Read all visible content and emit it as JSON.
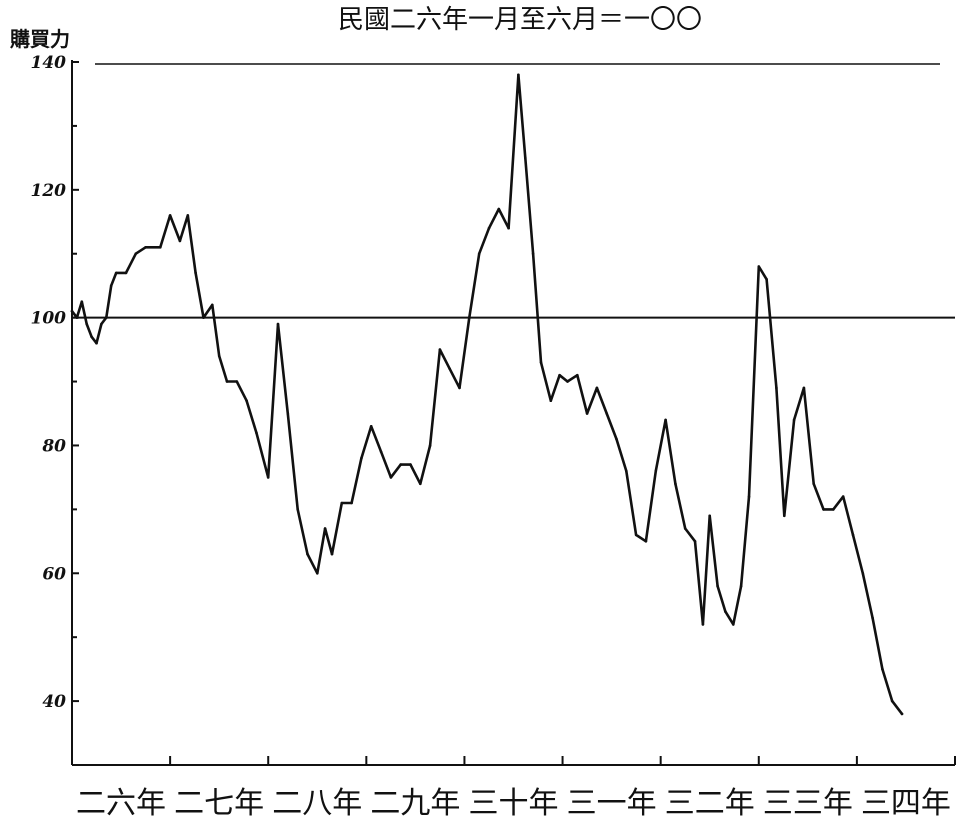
{
  "chart_data": {
    "type": "line",
    "title": "民國二六年一月至六月＝一〇〇",
    "ylabel": "購買力",
    "xlabel": "",
    "ylim": [
      30,
      140
    ],
    "yticks": [
      40,
      60,
      80,
      100,
      120,
      140
    ],
    "ytick_labels": [
      "40",
      "60",
      "80",
      "100",
      "120",
      "140"
    ],
    "x_labels": [
      "二六年",
      "二七年",
      "二八年",
      "二九年",
      "三十年",
      "三一年",
      "三二年",
      "三三年",
      "三四年"
    ],
    "xlim": [
      1937,
      1946
    ],
    "reference_line": 100,
    "grid": false,
    "series": [
      {
        "values": [
          [
            1937.0,
            101
          ],
          [
            1937.05,
            100
          ],
          [
            1937.1,
            102.5
          ],
          [
            1937.15,
            99
          ],
          [
            1937.2,
            97
          ],
          [
            1937.25,
            96
          ],
          [
            1937.3,
            99
          ],
          [
            1937.35,
            100
          ],
          [
            1937.4,
            105
          ],
          [
            1937.45,
            107
          ],
          [
            1937.55,
            107
          ],
          [
            1937.65,
            110
          ],
          [
            1937.75,
            111
          ],
          [
            1937.9,
            111
          ],
          [
            1938.0,
            116
          ],
          [
            1938.1,
            112
          ],
          [
            1938.18,
            116
          ],
          [
            1938.26,
            107
          ],
          [
            1938.34,
            100
          ],
          [
            1938.43,
            102
          ],
          [
            1938.5,
            94
          ],
          [
            1938.58,
            90
          ],
          [
            1938.68,
            90
          ],
          [
            1938.78,
            87
          ],
          [
            1938.88,
            82
          ],
          [
            1939.0,
            75
          ],
          [
            1939.1,
            99
          ],
          [
            1939.2,
            85
          ],
          [
            1939.3,
            70
          ],
          [
            1939.4,
            63
          ],
          [
            1939.5,
            60
          ],
          [
            1939.58,
            67
          ],
          [
            1939.65,
            63
          ],
          [
            1939.75,
            71
          ],
          [
            1939.85,
            71
          ],
          [
            1939.95,
            78
          ],
          [
            1940.05,
            83
          ],
          [
            1940.15,
            79
          ],
          [
            1940.25,
            75
          ],
          [
            1940.35,
            77
          ],
          [
            1940.45,
            77
          ],
          [
            1940.55,
            74
          ],
          [
            1940.65,
            80
          ],
          [
            1940.75,
            95
          ],
          [
            1940.85,
            92
          ],
          [
            1940.95,
            89
          ],
          [
            1941.05,
            100
          ],
          [
            1941.15,
            110
          ],
          [
            1941.25,
            114
          ],
          [
            1941.35,
            117
          ],
          [
            1941.45,
            114
          ],
          [
            1941.55,
            138
          ],
          [
            1941.62,
            125
          ],
          [
            1941.7,
            110
          ],
          [
            1941.78,
            93
          ],
          [
            1941.88,
            87
          ],
          [
            1941.97,
            91
          ],
          [
            1942.05,
            90
          ],
          [
            1942.15,
            91
          ],
          [
            1942.25,
            85
          ],
          [
            1942.35,
            89
          ],
          [
            1942.45,
            85
          ],
          [
            1942.55,
            81
          ],
          [
            1942.65,
            76
          ],
          [
            1942.75,
            66
          ],
          [
            1942.85,
            65
          ],
          [
            1942.95,
            76
          ],
          [
            1943.05,
            84
          ],
          [
            1943.15,
            74
          ],
          [
            1943.25,
            67
          ],
          [
            1943.35,
            65
          ],
          [
            1943.43,
            52
          ],
          [
            1943.5,
            69
          ],
          [
            1943.58,
            58
          ],
          [
            1943.66,
            54
          ],
          [
            1943.74,
            52
          ],
          [
            1943.82,
            58
          ],
          [
            1943.9,
            72
          ],
          [
            1944.0,
            108
          ],
          [
            1944.08,
            106
          ],
          [
            1944.18,
            89
          ],
          [
            1944.26,
            69
          ],
          [
            1944.36,
            84
          ],
          [
            1944.46,
            89
          ],
          [
            1944.56,
            74
          ],
          [
            1944.66,
            70
          ],
          [
            1944.76,
            70
          ],
          [
            1944.86,
            72
          ],
          [
            1944.96,
            66
          ],
          [
            1945.06,
            60
          ],
          [
            1945.16,
            53
          ],
          [
            1945.26,
            45
          ],
          [
            1945.36,
            40
          ],
          [
            1945.46,
            38
          ]
        ]
      }
    ],
    "colors": {
      "line": "#111111",
      "axis": "#111111",
      "background": "#ffffff"
    }
  }
}
